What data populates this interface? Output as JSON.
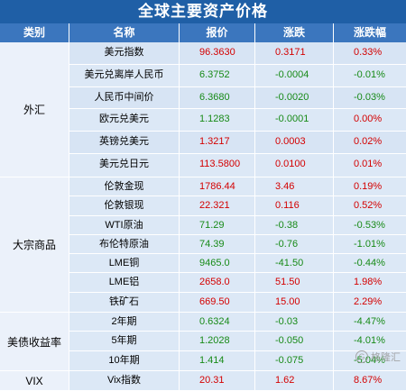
{
  "title": "全球主要资产价格",
  "headers": [
    "类别",
    "名称",
    "报价",
    "涨跌",
    "涨跌幅"
  ],
  "groups": [
    {
      "category": "外汇",
      "rows": [
        {
          "name": "美元指数",
          "price": "96.3630",
          "change": "0.3171",
          "pct": "0.33%",
          "dir": "up"
        },
        {
          "name": "美元兑离岸人民币",
          "price": "6.3752",
          "change": "-0.0004",
          "pct": "-0.01%",
          "dir": "down"
        },
        {
          "name": "人民币中间价",
          "price": "6.3680",
          "change": "-0.0020",
          "pct": "-0.03%",
          "dir": "down"
        },
        {
          "name": "欧元兑美元",
          "price": "1.1283",
          "change": "-0.0001",
          "pct": "0.00%",
          "dir": "mixed"
        },
        {
          "name": "英镑兑美元",
          "price": "1.3217",
          "change": "0.0003",
          "pct": "0.02%",
          "dir": "up"
        },
        {
          "name": "美元兑日元",
          "price": "113.5800",
          "change": "0.0100",
          "pct": "0.01%",
          "dir": "up"
        }
      ]
    },
    {
      "category": "大宗商品",
      "rows": [
        {
          "name": "伦敦金现",
          "price": "1786.44",
          "change": "3.46",
          "pct": "0.19%",
          "dir": "up"
        },
        {
          "name": "伦敦银现",
          "price": "22.321",
          "change": "0.116",
          "pct": "0.52%",
          "dir": "up"
        },
        {
          "name": "WTI原油",
          "price": "71.29",
          "change": "-0.38",
          "pct": "-0.53%",
          "dir": "down"
        },
        {
          "name": "布伦特原油",
          "price": "74.39",
          "change": "-0.76",
          "pct": "-1.01%",
          "dir": "down"
        },
        {
          "name": "LME铜",
          "price": "9465.0",
          "change": "-41.50",
          "pct": "-0.44%",
          "dir": "down"
        },
        {
          "name": "LME铝",
          "price": "2658.0",
          "change": "51.50",
          "pct": "1.98%",
          "dir": "up"
        },
        {
          "name": "铁矿石",
          "price": "669.50",
          "change": "15.00",
          "pct": "2.29%",
          "dir": "up"
        }
      ]
    },
    {
      "category": "美债收益率",
      "rows": [
        {
          "name": "2年期",
          "price": "0.6324",
          "change": "-0.03",
          "pct": "-4.47%",
          "dir": "down"
        },
        {
          "name": "5年期",
          "price": "1.2028",
          "change": "-0.050",
          "pct": "-4.01%",
          "dir": "down"
        },
        {
          "name": "10年期",
          "price": "1.414",
          "change": "-0.075",
          "pct": "-5.04%",
          "dir": "down"
        }
      ]
    },
    {
      "category": "VIX",
      "rows": [
        {
          "name": "Vix指数",
          "price": "20.31",
          "change": "1.62",
          "pct": "8.67%",
          "dir": "up"
        }
      ]
    }
  ],
  "watermark": "格隆汇",
  "colors": {
    "title_bg": "#1f5fa6",
    "header_bg": "#3b76be",
    "up": "#d40000",
    "down": "#178a17",
    "row_bg": "#dce8f6"
  }
}
